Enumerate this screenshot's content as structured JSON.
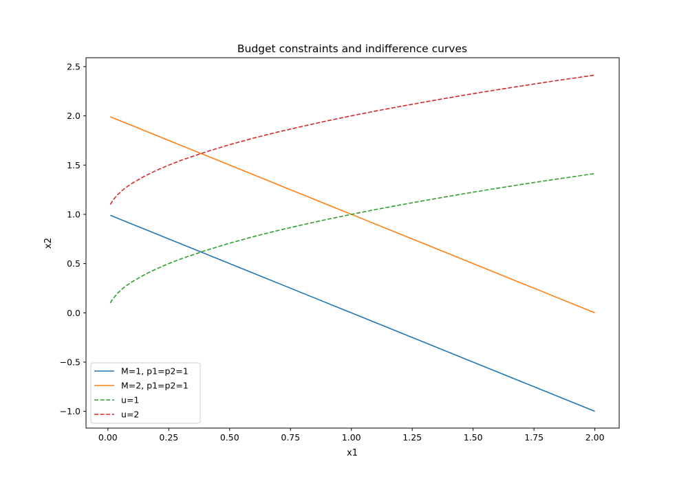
{
  "chart_data": {
    "type": "line",
    "title": "Budget constraints and indifference curves",
    "xlabel": "x1",
    "ylabel": "x2",
    "xlim": [
      -0.09,
      2.1
    ],
    "ylim": [
      -1.17,
      2.59
    ],
    "xticks": [
      0.0,
      0.25,
      0.5,
      0.75,
      1.0,
      1.25,
      1.5,
      1.75,
      2.0
    ],
    "xtick_labels": [
      "0.00",
      "0.25",
      "0.50",
      "0.75",
      "1.00",
      "1.25",
      "1.50",
      "1.75",
      "2.00"
    ],
    "yticks": [
      -1.0,
      -0.5,
      0.0,
      0.5,
      1.0,
      1.5,
      2.0,
      2.5
    ],
    "ytick_labels": [
      "−1.0",
      "−0.5",
      "0.0",
      "0.5",
      "1.0",
      "1.5",
      "2.0",
      "2.5"
    ],
    "grid": false,
    "legend_position": "lower-left",
    "series": [
      {
        "name": "M=1, p1=p2=1",
        "color": "#1f77b4",
        "dash": "solid",
        "x": [
          0.01,
          0.25,
          0.5,
          0.75,
          1.0,
          1.25,
          1.5,
          1.75,
          2.0
        ],
        "y": [
          0.99,
          0.75,
          0.5,
          0.25,
          0.0,
          -0.25,
          -0.5,
          -0.75,
          -1.0
        ]
      },
      {
        "name": "M=2, p1=p2=1",
        "color": "#ff7f0e",
        "dash": "solid",
        "x": [
          0.01,
          0.25,
          0.5,
          0.75,
          1.0,
          1.25,
          1.5,
          1.75,
          2.0
        ],
        "y": [
          1.99,
          1.75,
          1.5,
          1.25,
          1.0,
          0.75,
          0.5,
          0.25,
          0.0
        ]
      },
      {
        "name": "u=1",
        "color": "#2ca02c",
        "dash": "dashed",
        "x": [
          0.01,
          0.02,
          0.04,
          0.06,
          0.08,
          0.1,
          0.15,
          0.2,
          0.25,
          0.3,
          0.4,
          0.5,
          0.6,
          0.7,
          0.8,
          0.9,
          1.0,
          1.1,
          1.2,
          1.3,
          1.4,
          1.5,
          1.6,
          1.7,
          1.8,
          1.9,
          2.0
        ],
        "y": [
          0.1,
          0.141,
          0.2,
          0.245,
          0.283,
          0.316,
          0.387,
          0.447,
          0.5,
          0.548,
          0.632,
          0.707,
          0.775,
          0.837,
          0.894,
          0.949,
          1.0,
          1.049,
          1.095,
          1.14,
          1.183,
          1.225,
          1.265,
          1.304,
          1.342,
          1.378,
          1.414
        ]
      },
      {
        "name": "u=2",
        "color": "#d62728",
        "dash": "dashed",
        "x": [
          0.01,
          0.02,
          0.04,
          0.06,
          0.08,
          0.1,
          0.15,
          0.2,
          0.25,
          0.3,
          0.4,
          0.5,
          0.6,
          0.7,
          0.8,
          0.9,
          1.0,
          1.1,
          1.2,
          1.3,
          1.4,
          1.5,
          1.6,
          1.7,
          1.8,
          1.9,
          2.0
        ],
        "y": [
          1.1,
          1.141,
          1.2,
          1.245,
          1.283,
          1.316,
          1.387,
          1.447,
          1.5,
          1.548,
          1.632,
          1.707,
          1.775,
          1.837,
          1.894,
          1.949,
          2.0,
          2.049,
          2.095,
          2.14,
          2.183,
          2.225,
          2.265,
          2.304,
          2.342,
          2.378,
          2.414
        ]
      }
    ]
  }
}
